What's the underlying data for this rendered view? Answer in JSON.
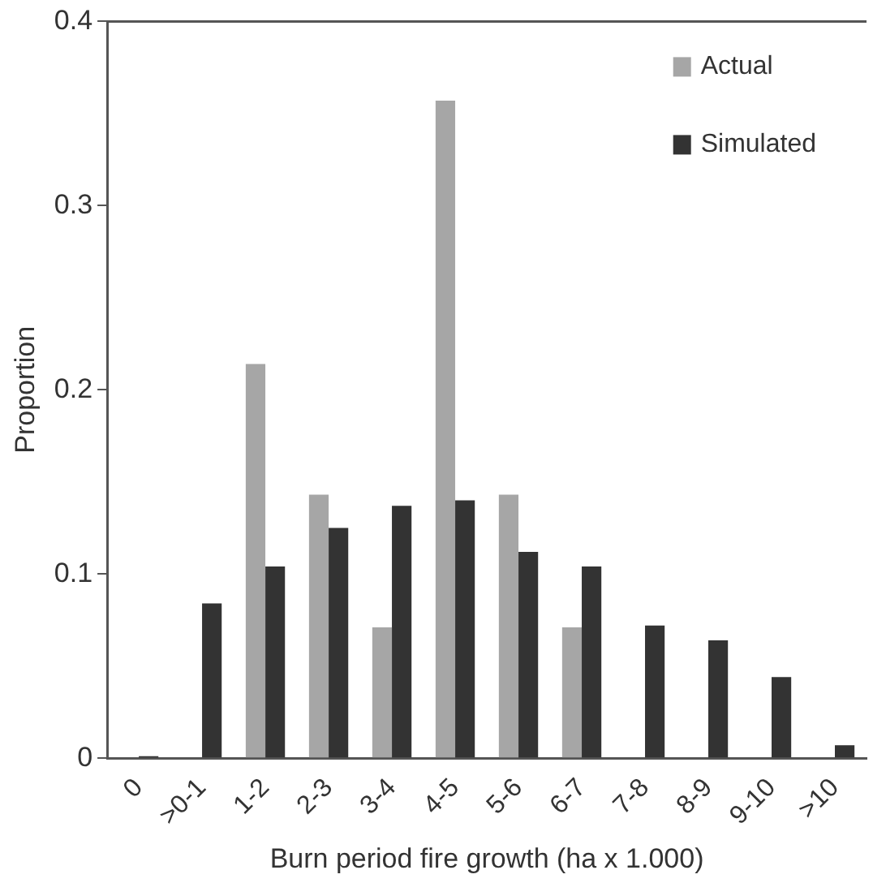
{
  "chart_data": {
    "type": "bar",
    "xlabel": "Burn period fire growth (ha x 1.000)",
    "ylabel": "Proportion",
    "categories": [
      "0",
      ">0-1",
      "1-2",
      "2-3",
      "3-4",
      "4-5",
      "5-6",
      "6-7",
      "7-8",
      "8-9",
      "9-10",
      ">10"
    ],
    "series": [
      {
        "name": "Actual",
        "color": "#a6a6a6",
        "values": [
          0,
          0,
          0.214,
          0.143,
          0.071,
          0.357,
          0.143,
          0.071,
          0,
          0,
          0,
          0
        ]
      },
      {
        "name": "Simulated",
        "color": "#333333",
        "values": [
          0.001,
          0.084,
          0.104,
          0.125,
          0.137,
          0.14,
          0.112,
          0.104,
          0.072,
          0.064,
          0.044,
          0.007
        ]
      }
    ],
    "ylim": [
      0,
      0.4
    ],
    "yticks": [
      0,
      0.1,
      0.2,
      0.3,
      0.4
    ],
    "grid": false,
    "legend": "top right"
  }
}
